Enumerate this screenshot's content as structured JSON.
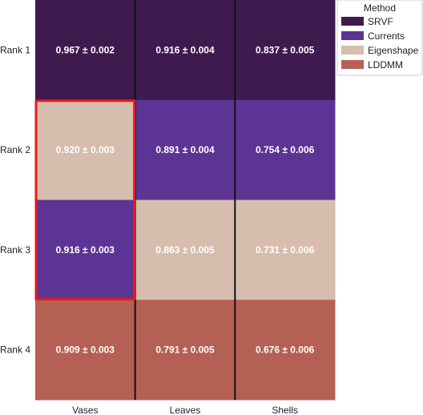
{
  "chart_data": {
    "type": "heatmap",
    "title": "",
    "xlabel": "",
    "ylabel": "",
    "columns": [
      "Vases",
      "Leaves",
      "Shells"
    ],
    "rows": [
      "Rank 1",
      "Rank 2",
      "Rank 3",
      "Rank 4"
    ],
    "cells": [
      [
        {
          "method": "SRVF",
          "label": "0.967 ± 0.002"
        },
        {
          "method": "SRVF",
          "label": "0.916 ± 0.004"
        },
        {
          "method": "SRVF",
          "label": "0.837 ± 0.005"
        }
      ],
      [
        {
          "method": "Eigenshape",
          "label": "0.920 ± 0.003"
        },
        {
          "method": "Currents",
          "label": "0.891 ± 0.004"
        },
        {
          "method": "Currents",
          "label": "0.754 ± 0.006"
        }
      ],
      [
        {
          "method": "Currents",
          "label": "0.916 ± 0.003"
        },
        {
          "method": "Eigenshape",
          "label": "0.863 ± 0.005"
        },
        {
          "method": "Eigenshape",
          "label": "0.731 ± 0.006"
        }
      ],
      [
        {
          "method": "LDDMM",
          "label": "0.909 ± 0.003"
        },
        {
          "method": "LDDMM",
          "label": "0.791 ± 0.005"
        },
        {
          "method": "LDDMM",
          "label": "0.676 ± 0.006"
        }
      ]
    ],
    "highlight": {
      "column": "Vases",
      "rows": [
        "Rank 2",
        "Rank 3"
      ],
      "color": "#e31a1c"
    },
    "legend": {
      "title": "Method",
      "placement": "top-right",
      "entries": [
        {
          "name": "SRVF",
          "color": "#3f1a4f"
        },
        {
          "name": "Currents",
          "color": "#5c3594"
        },
        {
          "name": "Eigenshape",
          "color": "#d6bdad"
        },
        {
          "name": "LDDMM",
          "color": "#b56055"
        }
      ]
    },
    "separator_color": "#111111"
  }
}
